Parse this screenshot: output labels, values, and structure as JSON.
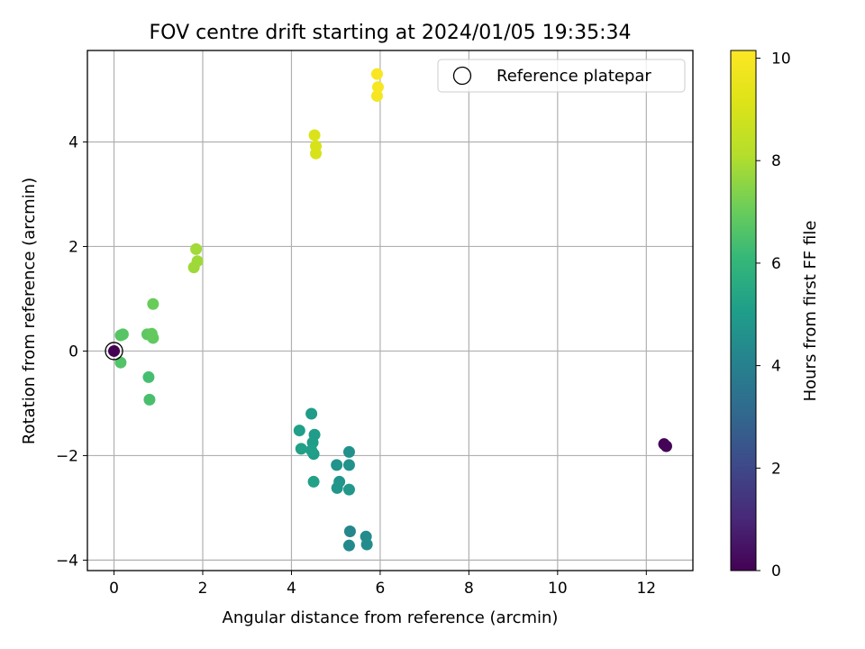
{
  "chart_data": {
    "type": "scatter",
    "title": "FOV centre drift starting at 2024/01/05 19:35:34",
    "xlabel": "Angular distance from reference (arcmin)",
    "ylabel": "Rotation from reference (arcmin)",
    "xlim": [
      -0.6,
      13.05
    ],
    "ylim": [
      -4.2,
      5.75
    ],
    "xticks": [
      0,
      2,
      4,
      6,
      8,
      10,
      12
    ],
    "yticks": [
      -4,
      -2,
      0,
      2,
      4
    ],
    "grid": true,
    "colorbar": {
      "label": "Hours from first FF file",
      "range": [
        0,
        10.15
      ],
      "ticks": [
        0,
        2,
        4,
        6,
        8,
        10
      ],
      "colormap": "viridis"
    },
    "legend": {
      "position": "top-right",
      "entries": [
        {
          "label": "Reference platepar",
          "marker": "hollow-circle"
        }
      ]
    },
    "reference_point": {
      "x": 0,
      "y": 0
    },
    "points": [
      {
        "x": 0.0,
        "y": 0.0,
        "hours": 0.0
      },
      {
        "x": 12.4,
        "y": -1.78,
        "hours": 0.05
      },
      {
        "x": 12.45,
        "y": -1.82,
        "hours": 0.1
      },
      {
        "x": 5.32,
        "y": -3.45,
        "hours": 4.2
      },
      {
        "x": 5.3,
        "y": -3.72,
        "hours": 4.3
      },
      {
        "x": 5.68,
        "y": -3.55,
        "hours": 4.4
      },
      {
        "x": 5.7,
        "y": -3.7,
        "hours": 4.45
      },
      {
        "x": 5.3,
        "y": -1.93,
        "hours": 4.6
      },
      {
        "x": 5.3,
        "y": -2.18,
        "hours": 4.65
      },
      {
        "x": 5.02,
        "y": -2.18,
        "hours": 4.7
      },
      {
        "x": 5.08,
        "y": -2.5,
        "hours": 4.75
      },
      {
        "x": 5.03,
        "y": -2.62,
        "hours": 4.8
      },
      {
        "x": 5.3,
        "y": -2.65,
        "hours": 4.85
      },
      {
        "x": 4.45,
        "y": -1.2,
        "hours": 5.0
      },
      {
        "x": 4.52,
        "y": -1.6,
        "hours": 5.0
      },
      {
        "x": 4.48,
        "y": -1.75,
        "hours": 5.05
      },
      {
        "x": 4.5,
        "y": -1.97,
        "hours": 5.05
      },
      {
        "x": 4.45,
        "y": -1.9,
        "hours": 5.1
      },
      {
        "x": 4.18,
        "y": -1.52,
        "hours": 5.1
      },
      {
        "x": 4.22,
        "y": -1.87,
        "hours": 5.15
      },
      {
        "x": 4.5,
        "y": -2.5,
        "hours": 5.2
      },
      {
        "x": 0.78,
        "y": -0.5,
        "hours": 6.4
      },
      {
        "x": 0.8,
        "y": -0.93,
        "hours": 6.45
      },
      {
        "x": 0.15,
        "y": -0.22,
        "hours": 6.6
      },
      {
        "x": 0.15,
        "y": 0.3,
        "hours": 6.7
      },
      {
        "x": 0.2,
        "y": 0.32,
        "hours": 6.7
      },
      {
        "x": 0.75,
        "y": 0.32,
        "hours": 6.8
      },
      {
        "x": 0.85,
        "y": 0.33,
        "hours": 6.9
      },
      {
        "x": 0.88,
        "y": 0.25,
        "hours": 6.9
      },
      {
        "x": 0.88,
        "y": 0.9,
        "hours": 7.0
      },
      {
        "x": 1.8,
        "y": 1.6,
        "hours": 7.8
      },
      {
        "x": 1.88,
        "y": 1.72,
        "hours": 7.8
      },
      {
        "x": 1.85,
        "y": 1.95,
        "hours": 7.85
      },
      {
        "x": 4.55,
        "y": 3.78,
        "hours": 9.0
      },
      {
        "x": 4.55,
        "y": 3.92,
        "hours": 9.0
      },
      {
        "x": 4.52,
        "y": 4.13,
        "hours": 9.05
      },
      {
        "x": 5.93,
        "y": 4.88,
        "hours": 9.9
      },
      {
        "x": 5.95,
        "y": 5.05,
        "hours": 9.95
      },
      {
        "x": 5.93,
        "y": 5.3,
        "hours": 10.0
      }
    ]
  }
}
